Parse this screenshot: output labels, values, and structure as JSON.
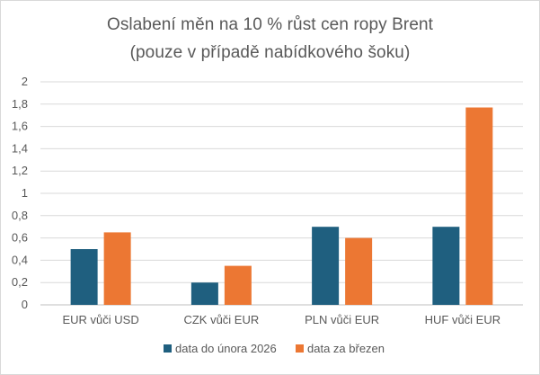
{
  "chart_data": {
    "type": "bar",
    "title": "Oslabení měn na 10 % růst cen ropy Brent",
    "subtitle": "(pouze v případě nabídkového šoku)",
    "categories": [
      "EUR vůči USD",
      "CZK vůči EUR",
      "PLN vůči EUR",
      "HUF vůči EUR"
    ],
    "series": [
      {
        "name": "data do února 2026",
        "color": "#1f5f7f",
        "values": [
          0.5,
          0.2,
          0.7,
          0.7
        ]
      },
      {
        "name": "data za březen",
        "color": "#ec7733",
        "values": [
          0.65,
          0.35,
          0.6,
          1.77
        ]
      }
    ],
    "yticks": [
      "0",
      "0,2",
      "0,4",
      "0,6",
      "0,8",
      "1",
      "1,2",
      "1,4",
      "1,6",
      "1,8",
      "2"
    ],
    "ylim": [
      0,
      2
    ],
    "xlabel": "",
    "ylabel": "",
    "grid": true,
    "legend_position": "bottom"
  }
}
